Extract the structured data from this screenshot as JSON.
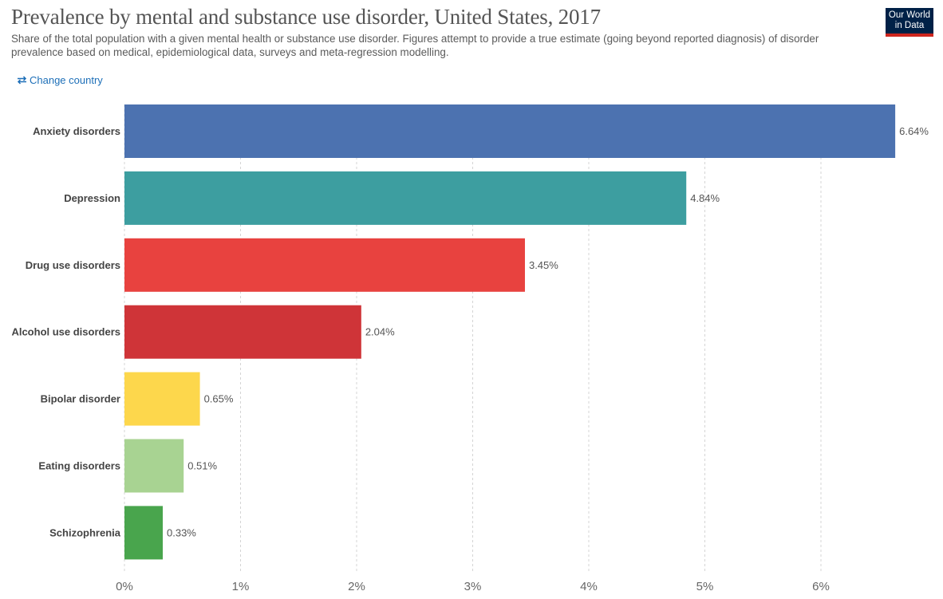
{
  "header": {
    "title": "Prevalence by mental and substance use disorder, United States, 2017",
    "subtitle": "Share of the total population with a given mental health or substance use disorder. Figures attempt to provide a true estimate (going beyond reported diagnosis) of disorder prevalence based on medical, epidemiological data, surveys and meta-regression modelling.",
    "logo_line1": "Our World",
    "logo_line2": "in Data"
  },
  "controls": {
    "change_country_label": "Change country",
    "change_country_icon": "swap-arrows-icon"
  },
  "chart_data": {
    "type": "bar",
    "orientation": "horizontal",
    "categories": [
      "Anxiety disorders",
      "Depression",
      "Drug use disorders",
      "Alcohol use disorders",
      "Bipolar disorder",
      "Eating disorders",
      "Schizophrenia"
    ],
    "values": [
      6.64,
      4.84,
      3.45,
      2.04,
      0.65,
      0.51,
      0.33
    ],
    "value_labels": [
      "6.64%",
      "4.84%",
      "3.45%",
      "2.04%",
      "0.65%",
      "0.51%",
      "0.33%"
    ],
    "colors": [
      "#4c72b0",
      "#3d9ea0",
      "#e8423f",
      "#cf3438",
      "#fdd74c",
      "#a8d392",
      "#49a54d"
    ],
    "xlim": [
      0,
      6.8
    ],
    "xticks": [
      0,
      1,
      2,
      3,
      4,
      5,
      6
    ],
    "xtick_labels": [
      "0%",
      "1%",
      "2%",
      "3%",
      "4%",
      "5%",
      "6%"
    ],
    "grid": "vertical dashed"
  }
}
